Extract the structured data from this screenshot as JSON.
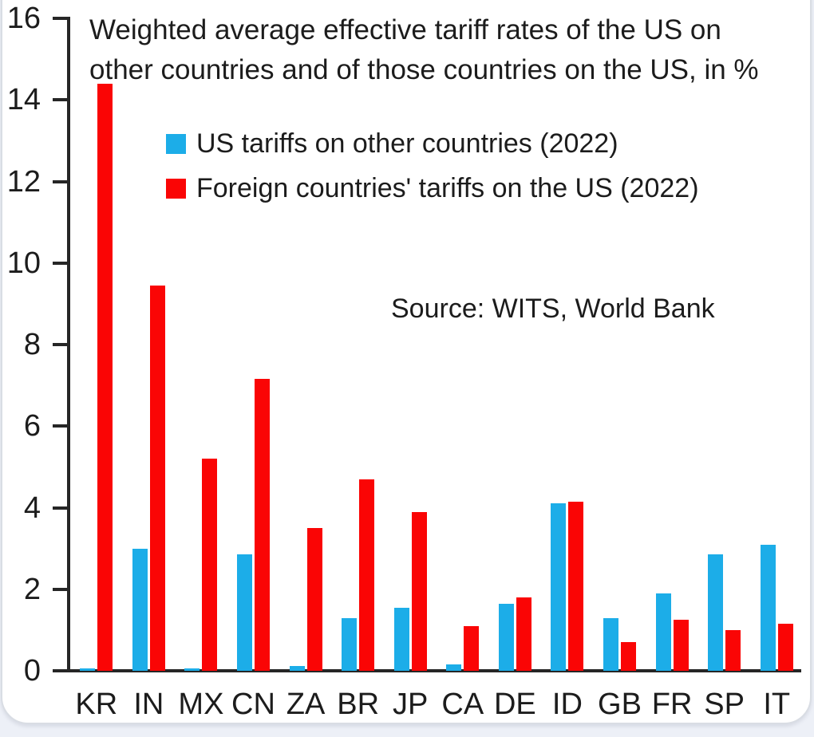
{
  "page": {
    "background_color": "#edf0f7",
    "card_color": "#ffffff",
    "card_border_color": "#d9dde4"
  },
  "header": {
    "title_lines": [
      "Weighted average effective tariff rates of the US on",
      "other countries and of those countries on the US, in %"
    ]
  },
  "legend": {
    "items": [
      {
        "label": "US tariffs on other countries (2022)",
        "color": "#1cade8"
      },
      {
        "label": "Foreign countries' tariffs on the US (2022)",
        "color": "#fa0505"
      }
    ]
  },
  "source_note": "Source: WITS, World Bank",
  "chart_data": {
    "type": "bar",
    "title": "Weighted average effective tariff rates of the US on other countries and of those countries on the US, in %",
    "units": "%",
    "categories": [
      "KR",
      "IN",
      "MX",
      "CN",
      "ZA",
      "BR",
      "JP",
      "CA",
      "DE",
      "ID",
      "GB",
      "FR",
      "SP",
      "IT"
    ],
    "series": [
      {
        "name": "US tariffs on other countries (2022)",
        "color": "#1cade8",
        "values": [
          0.05,
          3.0,
          0.05,
          2.85,
          0.12,
          1.3,
          1.55,
          0.15,
          1.65,
          4.1,
          1.3,
          1.9,
          2.85,
          3.1
        ]
      },
      {
        "name": "Foreign countries' tariffs on the US (2022)",
        "color": "#fa0505",
        "values": [
          14.4,
          9.45,
          5.2,
          7.15,
          3.5,
          4.7,
          3.9,
          1.1,
          1.8,
          4.15,
          0.7,
          1.25,
          1.0,
          1.15
        ]
      }
    ],
    "xlabel": "",
    "ylabel": "",
    "ylim": [
      0,
      16
    ],
    "yticks": [
      0,
      2,
      4,
      6,
      8,
      10,
      12,
      14,
      16
    ],
    "grid": false,
    "legend_position": "upper-left-inside",
    "annotations": [
      "Source: WITS, World Bank"
    ],
    "axis_color": "#262626"
  }
}
